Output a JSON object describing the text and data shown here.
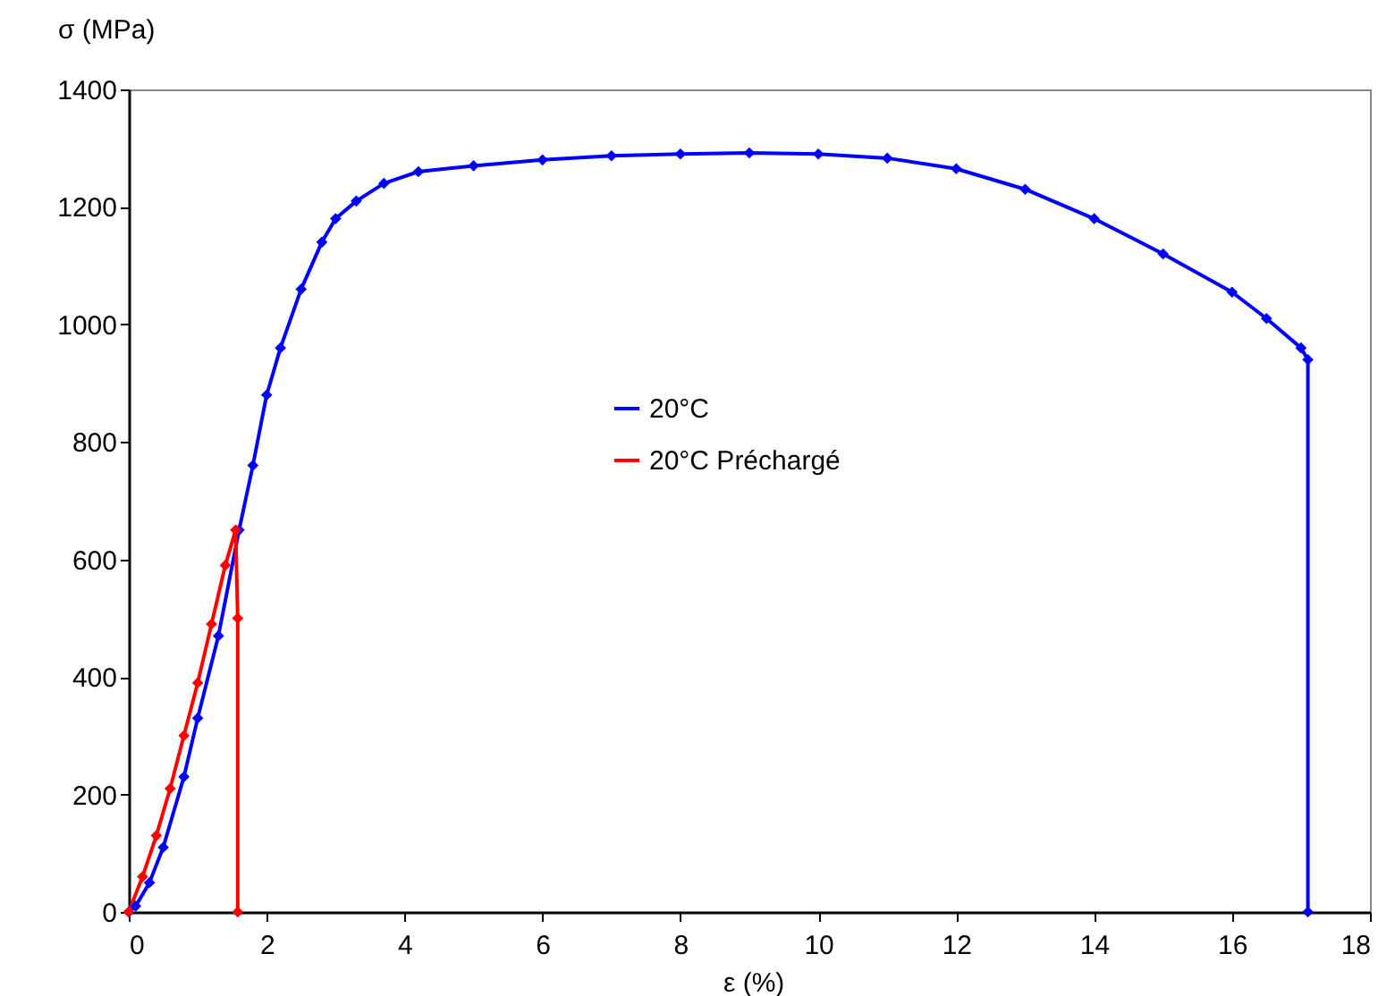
{
  "chart_data": {
    "type": "line",
    "xlabel": "ε (%)",
    "ylabel": "σ (MPa)",
    "xlim": [
      0,
      18
    ],
    "xticks": [
      0,
      2,
      4,
      6,
      8,
      10,
      12,
      14,
      16,
      18
    ],
    "ylim": [
      0,
      1400
    ],
    "yticks": [
      0,
      200,
      400,
      600,
      800,
      1000,
      1200,
      1400
    ],
    "grid": false,
    "legend": "center",
    "marker": "diamond",
    "line_style": "solid",
    "series": [
      {
        "name": "20°C",
        "color": "#0000ff",
        "x": [
          0,
          0.1,
          0.3,
          0.5,
          0.8,
          1.0,
          1.3,
          1.6,
          1.8,
          2.0,
          2.2,
          2.5,
          2.8,
          3.0,
          3.3,
          3.7,
          4.2,
          5,
          6,
          7,
          8,
          9,
          10,
          11,
          12,
          13,
          14,
          15,
          16,
          16.5,
          17,
          17.1,
          17.1
        ],
        "values": [
          0,
          10,
          50,
          110,
          230,
          330,
          470,
          650,
          760,
          880,
          960,
          1060,
          1140,
          1180,
          1210,
          1240,
          1260,
          1270,
          1280,
          1287,
          1290,
          1292,
          1290,
          1283,
          1265,
          1230,
          1180,
          1120,
          1055,
          1010,
          960,
          940,
          0
        ]
      },
      {
        "name": "20°C Préchargé",
        "color": "#ff0000",
        "x": [
          0,
          0.2,
          0.4,
          0.6,
          0.8,
          1.0,
          1.2,
          1.4,
          1.55,
          1.58,
          1.58
        ],
        "values": [
          0,
          60,
          130,
          210,
          300,
          390,
          490,
          590,
          650,
          500,
          0
        ]
      }
    ]
  }
}
